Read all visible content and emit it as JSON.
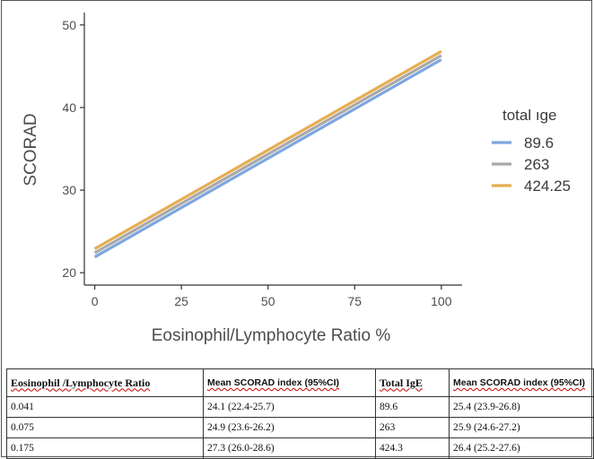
{
  "chart_data": {
    "type": "line",
    "title": "",
    "xlabel": "Eosinophil/Lymphocyte Ratio %",
    "ylabel": "SCORAD",
    "xlim": [
      -3,
      106
    ],
    "ylim": [
      18.5,
      51.5
    ],
    "x_ticks": [
      0,
      25,
      50,
      75,
      100
    ],
    "y_ticks": [
      20,
      30,
      40,
      50
    ],
    "legend_title": "total ıge",
    "legend_position": "right",
    "grid": false,
    "series": [
      {
        "name": "89.6",
        "color": "#7ea6e0",
        "points": [
          [
            0,
            21.9
          ],
          [
            100,
            45.8
          ]
        ]
      },
      {
        "name": "263",
        "color": "#a9a9a9",
        "points": [
          [
            0,
            22.4
          ],
          [
            100,
            46.3
          ]
        ]
      },
      {
        "name": "424.25",
        "color": "#e5ae52",
        "points": [
          [
            0,
            22.9
          ],
          [
            100,
            46.8
          ]
        ]
      }
    ]
  },
  "table": {
    "headers": [
      "Eosinophil /Lymphocyte Ratio",
      "Mean SCORAD index (95%CI)",
      "Total IgE",
      "Mean SCORAD index (95%CI)"
    ],
    "rows": [
      [
        "0.041",
        "24.1 (22.4-25.7)",
        "89.6",
        "25.4 (23.9-26.8)"
      ],
      [
        "0.075",
        "24.9 (23.6-26.2)",
        "263",
        "25.9 (24.6-27.2)"
      ],
      [
        "0.175",
        "27.3 (26.0-28.6)",
        "424.3",
        "26.4 (25.2-27.6)"
      ]
    ]
  }
}
